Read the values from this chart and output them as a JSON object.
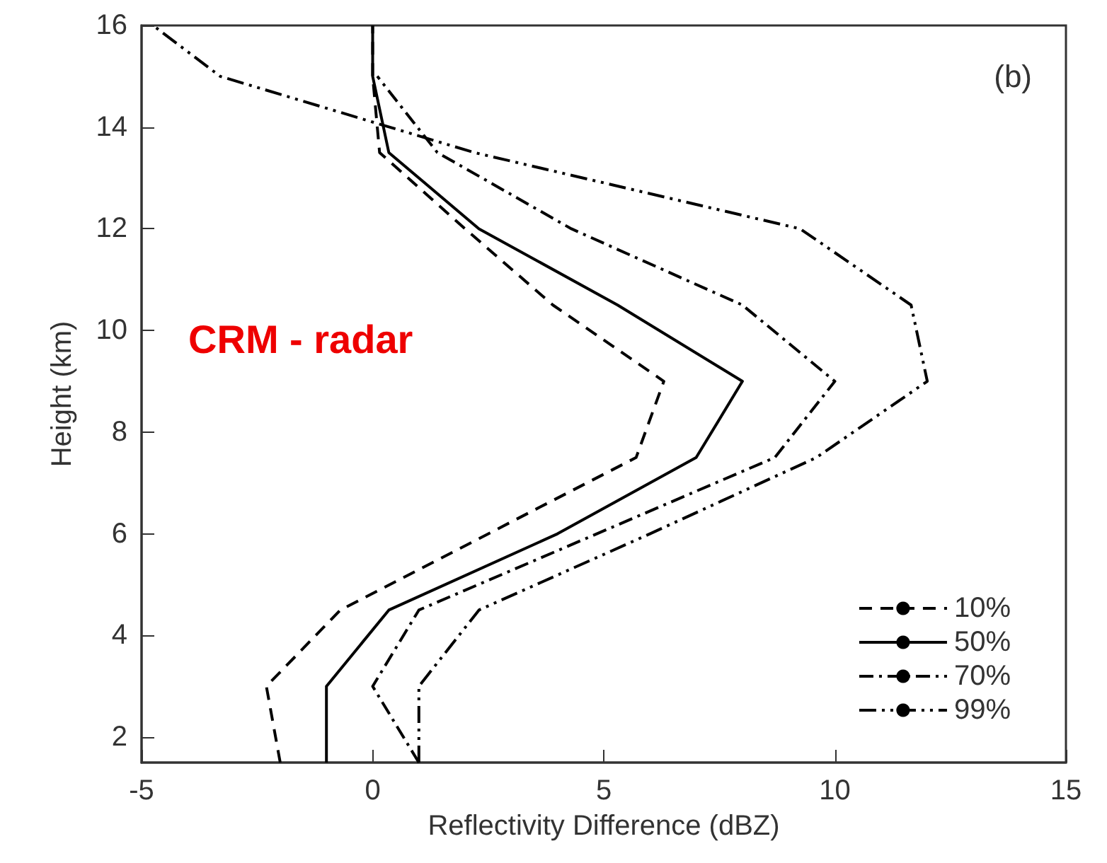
{
  "chart_data": {
    "type": "line",
    "xlabel": "Reflectivity Difference (dBZ)",
    "ylabel": "Height (km)",
    "annotations": [
      "(b)",
      "CRM - radar"
    ],
    "xlim": [
      -5,
      15
    ],
    "xticks": [
      -5,
      0,
      5,
      10,
      15
    ],
    "ylim": [
      1.5,
      16
    ],
    "yticks": [
      2,
      4,
      6,
      8,
      10,
      12,
      14,
      16
    ],
    "grid": false,
    "legend": "bottom right",
    "marker": "none",
    "series": [
      {
        "name": "10%",
        "color": "#000000",
        "line_style": "dashed",
        "x": [
          -2.0,
          -2.3,
          -0.7,
          5.7,
          6.3,
          3.9,
          2.0,
          0.15,
          0,
          0
        ],
        "values": [
          1.5,
          3,
          4.5,
          7.5,
          9,
          10.5,
          12,
          13.5,
          15,
          16
        ]
      },
      {
        "name": "50%",
        "color": "#000000",
        "line_style": "solid",
        "x": [
          -1.0,
          -1.0,
          0.35,
          4.0,
          7.0,
          8.0,
          5.3,
          2.3,
          0.35,
          0,
          0
        ],
        "values": [
          1.5,
          3,
          4.5,
          6,
          7.5,
          9,
          10.5,
          12,
          13.5,
          15,
          16
        ]
      },
      {
        "name": "70%",
        "color": "#000000",
        "line_style": "dashdot",
        "x": [
          1.0,
          0.0,
          1.0,
          8.7,
          10.0,
          8.0,
          4.3,
          1.4,
          0.1
        ],
        "values": [
          1.5,
          3,
          4.5,
          7.5,
          9,
          10.5,
          12,
          13.5,
          15
        ]
      },
      {
        "name": "99%",
        "color": "#000000",
        "line_style": "dashdotdot",
        "x": [
          1.0,
          1.0,
          2.3,
          6.0,
          9.6,
          12.0,
          11.65,
          9.25,
          2.2,
          -3.3,
          -4.75
        ],
        "values": [
          1.5,
          3,
          4.5,
          6,
          7.5,
          9,
          10.5,
          12,
          13.5,
          15,
          16
        ]
      }
    ]
  }
}
